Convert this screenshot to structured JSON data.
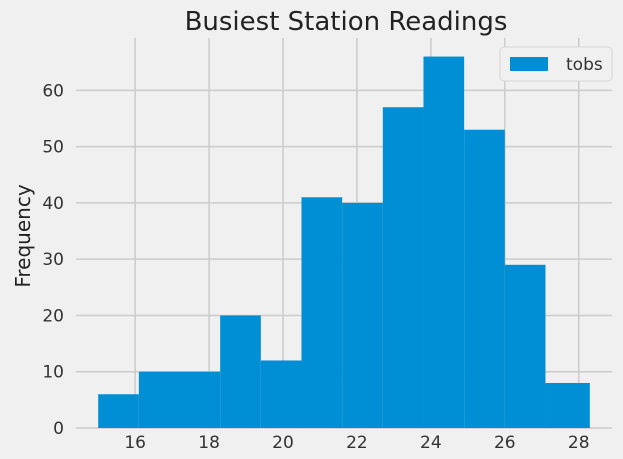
{
  "chart_data": {
    "type": "bar",
    "title": "Busiest Station Readings",
    "xlabel": "",
    "ylabel": "Frequency",
    "bin_edges": [
      15,
      16.1,
      17.2,
      18.3,
      19.4,
      20.5,
      21.6,
      22.7,
      23.8,
      24.9,
      26,
      27.1,
      28.3
    ],
    "values": [
      6,
      10,
      10,
      20,
      12,
      41,
      40,
      57,
      66,
      53,
      29,
      8
    ],
    "series": [
      {
        "name": "tobs",
        "color": "#008fd5"
      }
    ],
    "xlim": [
      14.4,
      28.9
    ],
    "ylim": [
      0,
      69.3
    ],
    "xticks": [
      16,
      18,
      20,
      22,
      24,
      26,
      28
    ],
    "yticks": [
      0,
      10,
      20,
      30,
      40,
      50,
      60
    ],
    "grid": true,
    "legend": "top-right"
  }
}
